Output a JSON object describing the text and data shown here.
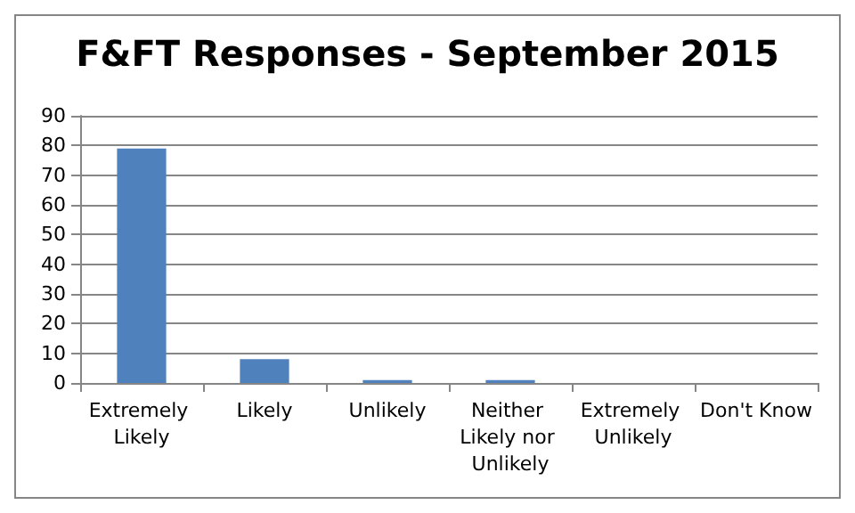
{
  "chart_data": {
    "type": "bar",
    "title": "F&FT Responses - September 2015",
    "categories": [
      "Extremely Likely",
      "Likely",
      "Unlikely",
      "Neither Likely nor Unlikely",
      "Extremely Unlikely",
      "Don't Know"
    ],
    "values": [
      79,
      8,
      1,
      1,
      0,
      0
    ],
    "color": "#4f81bd",
    "ylim": [
      0,
      90
    ],
    "yticks": [
      0,
      10,
      20,
      30,
      40,
      50,
      60,
      70,
      80,
      90
    ],
    "grid": "y"
  }
}
